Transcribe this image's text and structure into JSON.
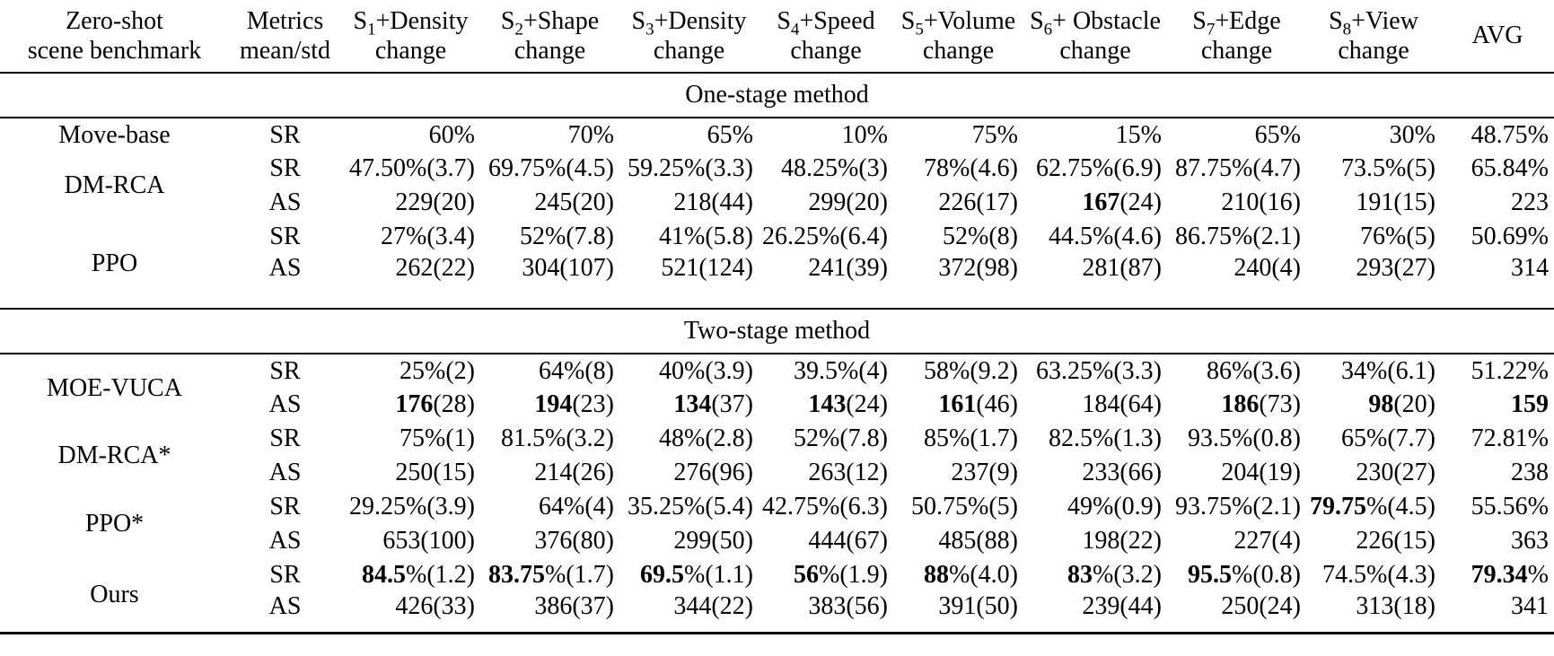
{
  "table": {
    "header": {
      "benchmark": {
        "line1": "Zero-shot",
        "line2": "scene benchmark"
      },
      "metrics": {
        "line1": "Metrics",
        "line2": "mean/std"
      },
      "scenarios": [
        {
          "base": "S",
          "sub": "1",
          "suffix": "+Density",
          "line2": "change"
        },
        {
          "base": "S",
          "sub": "2",
          "suffix": "+Shape",
          "line2": "change"
        },
        {
          "base": "S",
          "sub": "3",
          "suffix": "+Density",
          "line2": "change"
        },
        {
          "base": "S",
          "sub": "4",
          "suffix": "+Speed",
          "line2": "change"
        },
        {
          "base": "S",
          "sub": "5",
          "suffix": "+Volume",
          "line2": "change"
        },
        {
          "base": "S",
          "sub": "6",
          "suffix": "+ Obstacle",
          "line2": "change"
        },
        {
          "base": "S",
          "sub": "7",
          "suffix": "+Edge",
          "line2": "change"
        },
        {
          "base": "S",
          "sub": "8",
          "suffix": "+View",
          "line2": "change"
        }
      ],
      "avg": "AVG"
    },
    "sections": [
      {
        "title": "One-stage method",
        "groups": [
          {
            "name": "Move-base",
            "rows": [
              {
                "metric": "SR",
                "cells": [
                  "60%",
                  "70%",
                  "65%",
                  "10%",
                  "75%",
                  "15%",
                  "65%",
                  "30%",
                  "48.75%"
                ]
              }
            ]
          },
          {
            "name": "DM-RCA",
            "rows": [
              {
                "metric": "SR",
                "cells": [
                  "47.50%(3.7)",
                  "69.75%(4.5)",
                  "59.25%(3.3)",
                  "48.25%(3)",
                  "78%(4.6)",
                  "62.75%(6.9)",
                  "87.75%(4.7)",
                  "73.5%(5)",
                  "65.84%"
                ]
              },
              {
                "metric": "AS",
                "cells": [
                  "229(20)",
                  "245(20)",
                  "218(44)",
                  "299(20)",
                  "226(17)",
                  "**167**(24)",
                  "210(16)",
                  "191(15)",
                  "223"
                ]
              }
            ]
          },
          {
            "name": "PPO",
            "rows": [
              {
                "metric": "SR",
                "cells": [
                  "27%(3.4)",
                  "52%(7.8)",
                  "41%(5.8)",
                  "26.25%(6.4)",
                  "52%(8)",
                  "44.5%(4.6)",
                  "86.75%(2.1)",
                  "76%(5)",
                  "50.69%"
                ]
              },
              {
                "metric": "AS",
                "cells": [
                  "262(22)",
                  "304(107)",
                  "521(124)",
                  "241(39)",
                  "372(98)",
                  "281(87)",
                  "240(4)",
                  "293(27)",
                  "314"
                ]
              }
            ]
          }
        ]
      },
      {
        "title": "Two-stage method",
        "groups": [
          {
            "name": "MOE-VUCA",
            "rows": [
              {
                "metric": "SR",
                "cells": [
                  "25%(2)",
                  "64%(8)",
                  "40%(3.9)",
                  "39.5%(4)",
                  "58%(9.2)",
                  "63.25%(3.3)",
                  "86%(3.6)",
                  "34%(6.1)",
                  "51.22%"
                ]
              },
              {
                "metric": "AS",
                "cells": [
                  "**176**(28)",
                  "**194**(23)",
                  "**134**(37)",
                  "**143**(24)",
                  "**161**(46)",
                  "184(64)",
                  "**186**(73)",
                  "**98**(20)",
                  "**159**"
                ]
              }
            ]
          },
          {
            "name": "DM-RCA*",
            "rows": [
              {
                "metric": "SR",
                "cells": [
                  "75%(1)",
                  "81.5%(3.2)",
                  "48%(2.8)",
                  "52%(7.8)",
                  "85%(1.7)",
                  "82.5%(1.3)",
                  "93.5%(0.8)",
                  "65%(7.7)",
                  "72.81%"
                ]
              },
              {
                "metric": "AS",
                "cells": [
                  "250(15)",
                  "214(26)",
                  "276(96)",
                  "263(12)",
                  "237(9)",
                  "233(66)",
                  "204(19)",
                  "230(27)",
                  "238"
                ]
              }
            ]
          },
          {
            "name": "PPO*",
            "rows": [
              {
                "metric": "SR",
                "cells": [
                  "29.25%(3.9)",
                  "64%(4)",
                  "35.25%(5.4)",
                  "42.75%(6.3)",
                  "50.75%(5)",
                  "49%(0.9)",
                  "93.75%(2.1)",
                  "**79.75**%(4.5)",
                  "55.56%"
                ]
              },
              {
                "metric": "AS",
                "cells": [
                  "653(100)",
                  "376(80)",
                  "299(50)",
                  "444(67)",
                  "485(88)",
                  "198(22)",
                  "227(4)",
                  "226(15)",
                  "363"
                ]
              }
            ]
          },
          {
            "name": "Ours",
            "rows": [
              {
                "metric": "SR",
                "cells": [
                  "**84.5**%(1.2)",
                  "**83.75**%(1.7)",
                  "**69.5**%(1.1)",
                  "**56**%(1.9)",
                  "**88**%(4.0)",
                  "**83**%(3.2)",
                  "**95.5**%(0.8)",
                  "74.5%(4.3)",
                  "**79.34**%"
                ]
              },
              {
                "metric": "AS",
                "cells": [
                  "426(33)",
                  "386(37)",
                  "344(22)",
                  "383(56)",
                  "391(50)",
                  "239(44)",
                  "250(24)",
                  "313(18)",
                  "341"
                ]
              }
            ]
          }
        ]
      }
    ]
  }
}
